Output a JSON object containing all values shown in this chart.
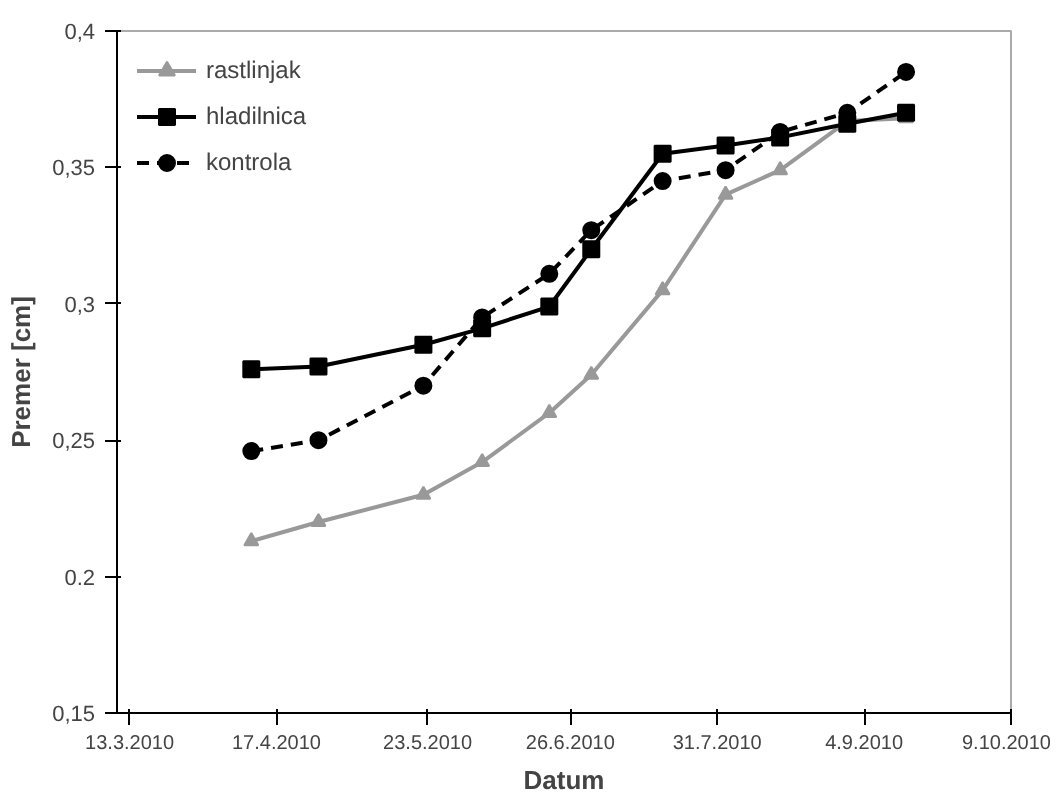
{
  "chart_data": {
    "type": "line",
    "xlabel": "Datum",
    "ylabel": "Premer [cm]",
    "x": [
      "2010-04-11",
      "2010-04-27",
      "2010-05-22",
      "2010-06-05",
      "2010-06-21",
      "2010-07-01",
      "2010-07-18",
      "2010-08-02",
      "2010-08-15",
      "2010-08-31",
      "2010-09-14"
    ],
    "series": [
      {
        "name": "rastlinjak",
        "color": "#999999",
        "marker": "triangle",
        "line_style": "solid",
        "values": [
          0.213,
          0.22,
          0.23,
          0.242,
          0.26,
          0.274,
          0.305,
          0.34,
          0.349,
          0.367,
          0.368
        ]
      },
      {
        "name": "hladilnica",
        "color": "#000000",
        "marker": "square",
        "line_style": "solid",
        "values": [
          0.276,
          0.277,
          0.285,
          0.291,
          0.299,
          0.32,
          0.355,
          0.358,
          0.361,
          0.366,
          0.37
        ]
      },
      {
        "name": "kontrola",
        "color": "#000000",
        "marker": "circle",
        "line_style": "dashed",
        "values": [
          0.246,
          0.25,
          0.27,
          0.295,
          0.311,
          0.327,
          0.345,
          0.349,
          0.363,
          0.37,
          0.385
        ]
      }
    ],
    "xlim": [
      "2010-03-10",
      "2010-10-09"
    ],
    "xticks": [
      {
        "value": "2010-03-13",
        "label": "13.3.2010"
      },
      {
        "value": "2010-04-17",
        "label": "17.4.2010"
      },
      {
        "value": "2010-05-23",
        "label": "23.5.2010"
      },
      {
        "value": "2010-06-26",
        "label": "26.6.2010"
      },
      {
        "value": "2010-07-31",
        "label": "31.7.2010"
      },
      {
        "value": "2010-09-04",
        "label": "4.9.2010"
      },
      {
        "value": "2010-10-09",
        "label": "9.10.2010"
      }
    ],
    "ylim": [
      0.15,
      0.4
    ],
    "yticks": [
      {
        "value": 0.15,
        "label": "0,15"
      },
      {
        "value": 0.2,
        "label": "0.2"
      },
      {
        "value": 0.25,
        "label": "0,25"
      },
      {
        "value": 0.3,
        "label": "0,3"
      },
      {
        "value": 0.35,
        "label": "0,35"
      },
      {
        "value": 0.4,
        "label": "0,4"
      }
    ],
    "grid": false,
    "legend": "top left"
  }
}
